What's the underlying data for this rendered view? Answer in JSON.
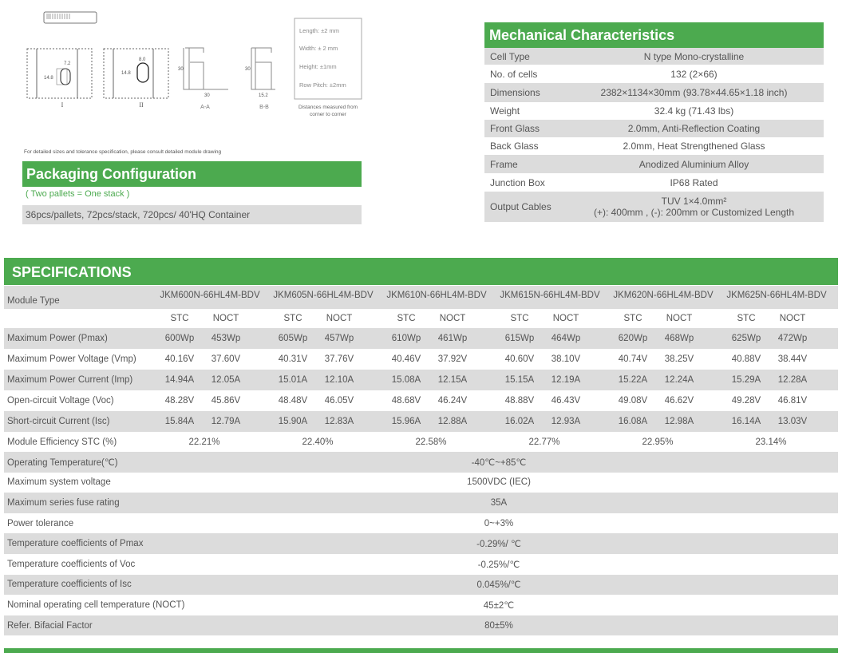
{
  "drawing": {
    "labels": [
      "I",
      "II",
      "A-A",
      "B-B"
    ],
    "dims": {
      "i_w": "7.2",
      "i_h": "14.8",
      "ii_w": "8.0",
      "ii_h": "14.8",
      "aa_h": "30",
      "aa_w": "30",
      "bb_h": "30",
      "bb_w": "15.2"
    },
    "tolerances": [
      "Length: ±2 mm",
      "Width: ± 2 mm",
      "Height: ±1mm",
      "Row Pitch: ±2mm"
    ],
    "tolerance_caption_1": "Distances measured from",
    "tolerance_caption_2": "corner to corner",
    "note": "For detailed sizes and tolerance specification, please consult detailed module drawing"
  },
  "packaging": {
    "title": "Packaging Configuration",
    "subtitle": "( Two pallets = One stack )",
    "detail": "36pcs/pallets, 72pcs/stack, 720pcs/ 40'HQ Container"
  },
  "mechanical": {
    "title": "Mechanical Characteristics",
    "rows": [
      {
        "label": "Cell Type",
        "value": "N type Mono-crystalline"
      },
      {
        "label": "No. of cells",
        "value": "132 (2×66)"
      },
      {
        "label": "Dimensions",
        "value": "2382×1134×30mm (93.78×44.65×1.18 inch)"
      },
      {
        "label": "Weight",
        "value": "32.4 kg (71.43 lbs)"
      },
      {
        "label": "Front Glass",
        "value": "2.0mm, Anti-Reflection Coating"
      },
      {
        "label": "Back Glass",
        "value": "2.0mm, Heat Strengthened Glass"
      },
      {
        "label": "Frame",
        "value": "Anodized Aluminium Alloy"
      },
      {
        "label": "Junction Box",
        "value": "IP68 Rated"
      },
      {
        "label": "Output Cables",
        "value": "TUV  1×4.0mm²",
        "value2": "(+): 400mm , (-): 200mm or Customized Length"
      }
    ]
  },
  "specifications": {
    "title": "SPECIFICATIONS",
    "module_type_label": "Module Type",
    "models": [
      "JKM600N-66HL4M-BDV",
      "JKM605N-66HL4M-BDV",
      "JKM610N-66HL4M-BDV",
      "JKM615N-66HL4M-BDV",
      "JKM620N-66HL4M-BDV",
      "JKM625N-66HL4M-BDV"
    ],
    "stc_label": "STC",
    "noct_label": "NOCT",
    "paired_rows": [
      {
        "label": "Maximum Power (Pmax)",
        "values": [
          [
            "600Wp",
            "453Wp"
          ],
          [
            "605Wp",
            "457Wp"
          ],
          [
            "610Wp",
            "461Wp"
          ],
          [
            "615Wp",
            "464Wp"
          ],
          [
            "620Wp",
            "468Wp"
          ],
          [
            "625Wp",
            "472Wp"
          ]
        ]
      },
      {
        "label": "Maximum Power Voltage (Vmp)",
        "values": [
          [
            "40.16V",
            "37.60V"
          ],
          [
            "40.31V",
            "37.76V"
          ],
          [
            "40.46V",
            "37.92V"
          ],
          [
            "40.60V",
            "38.10V"
          ],
          [
            "40.74V",
            "38.25V"
          ],
          [
            "40.88V",
            "38.44V"
          ]
        ]
      },
      {
        "label": "Maximum Power Current (Imp)",
        "values": [
          [
            "14.94A",
            "12.05A"
          ],
          [
            "15.01A",
            "12.10A"
          ],
          [
            "15.08A",
            "12.15A"
          ],
          [
            "15.15A",
            "12.19A"
          ],
          [
            "15.22A",
            "12.24A"
          ],
          [
            "15.29A",
            "12.28A"
          ]
        ]
      },
      {
        "label": "Open-circuit Voltage (Voc)",
        "values": [
          [
            "48.28V",
            "45.86V"
          ],
          [
            "48.48V",
            "46.05V"
          ],
          [
            "48.68V",
            "46.24V"
          ],
          [
            "48.88V",
            "46.43V"
          ],
          [
            "49.08V",
            "46.62V"
          ],
          [
            "49.28V",
            "46.81V"
          ]
        ]
      },
      {
        "label": "Short-circuit Current (Isc)",
        "values": [
          [
            "15.84A",
            "12.79A"
          ],
          [
            "15.90A",
            "12.83A"
          ],
          [
            "15.96A",
            "12.88A"
          ],
          [
            "16.02A",
            "12.93A"
          ],
          [
            "16.08A",
            "12.98A"
          ],
          [
            "16.14A",
            "13.03V"
          ]
        ]
      }
    ],
    "efficiency": {
      "label": "Module Efficiency STC (%)",
      "values": [
        "22.21%",
        "22.40%",
        "22.58%",
        "22.77%",
        "22.95%",
        "23.14%"
      ]
    },
    "common_rows": [
      {
        "label": "Operating Temperature(℃)",
        "value": "-40℃~+85℃"
      },
      {
        "label": "Maximum system voltage",
        "value": "1500VDC (IEC)"
      },
      {
        "label": "Maximum series fuse rating",
        "value": "35A"
      },
      {
        "label": "Power tolerance",
        "value": "0~+3%"
      },
      {
        "label": "Temperature coefficients of Pmax",
        "value": "-0.29%/ ℃"
      },
      {
        "label": "Temperature coefficients of Voc",
        "value": "-0.25%/℃"
      },
      {
        "label": "Temperature coefficients of Isc",
        "value": "0.045%/℃"
      },
      {
        "label": "Nominal operating cell temperature  (NOCT)",
        "value": "45±2℃"
      },
      {
        "label": "Refer. Bifacial Factor",
        "value": "80±5%"
      }
    ]
  },
  "colors": {
    "green": "#4caa4f",
    "row_gray": "#dcdcdc",
    "text": "#555555"
  }
}
